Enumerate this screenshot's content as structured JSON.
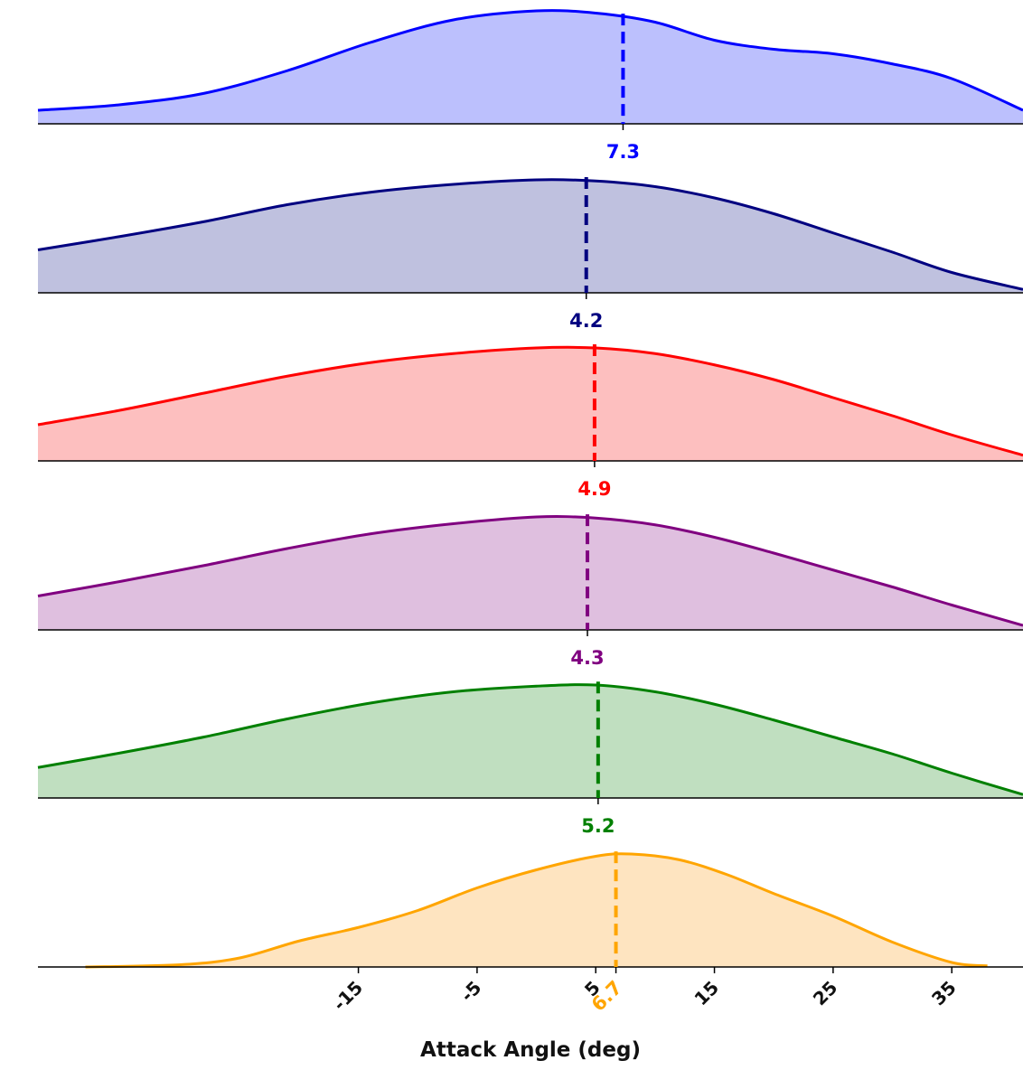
{
  "chart_data": {
    "type": "area",
    "title": "",
    "xlabel": "Attack Angle (deg)",
    "ylabel": "",
    "xlim": [
      -42,
      41
    ],
    "xticks": [
      -15,
      -5,
      5,
      15,
      25,
      35
    ],
    "xtick_labels": [
      "-15",
      "-5",
      "5",
      "15",
      "25",
      "35"
    ],
    "grid": false,
    "legend": "none",
    "series": [
      {
        "color": "#0000ff",
        "fill": "#bcc0fd",
        "mean": 7.3,
        "mean_label": "7.3",
        "density": [
          [
            -42,
            0.12
          ],
          [
            -35,
            0.17
          ],
          [
            -28,
            0.27
          ],
          [
            -21,
            0.47
          ],
          [
            -14,
            0.72
          ],
          [
            -7,
            0.92
          ],
          [
            0,
            1.0
          ],
          [
            5,
            0.98
          ],
          [
            10,
            0.9
          ],
          [
            15,
            0.74
          ],
          [
            20,
            0.66
          ],
          [
            25,
            0.62
          ],
          [
            30,
            0.53
          ],
          [
            35,
            0.4
          ],
          [
            41,
            0.12
          ]
        ]
      },
      {
        "color": "#000080",
        "fill": "#bfc1df",
        "mean": 4.2,
        "mean_label": "4.2",
        "density": [
          [
            -42,
            0.38
          ],
          [
            -35,
            0.5
          ],
          [
            -28,
            0.63
          ],
          [
            -21,
            0.78
          ],
          [
            -14,
            0.89
          ],
          [
            -7,
            0.96
          ],
          [
            0,
            1.0
          ],
          [
            5,
            0.99
          ],
          [
            10,
            0.94
          ],
          [
            15,
            0.84
          ],
          [
            20,
            0.7
          ],
          [
            25,
            0.53
          ],
          [
            30,
            0.36
          ],
          [
            35,
            0.18
          ],
          [
            41,
            0.03
          ]
        ]
      },
      {
        "color": "#ff0000",
        "fill": "#fdbfbf",
        "mean": 4.9,
        "mean_label": "4.9",
        "density": [
          [
            -42,
            0.32
          ],
          [
            -35,
            0.45
          ],
          [
            -28,
            0.6
          ],
          [
            -21,
            0.75
          ],
          [
            -14,
            0.87
          ],
          [
            -7,
            0.95
          ],
          [
            0,
            1.0
          ],
          [
            5,
            1.0
          ],
          [
            10,
            0.95
          ],
          [
            15,
            0.85
          ],
          [
            20,
            0.72
          ],
          [
            25,
            0.56
          ],
          [
            30,
            0.4
          ],
          [
            35,
            0.23
          ],
          [
            41,
            0.05
          ]
        ]
      },
      {
        "color": "#800080",
        "fill": "#dfbfdf",
        "mean": 4.3,
        "mean_label": "4.3",
        "density": [
          [
            -42,
            0.3
          ],
          [
            -35,
            0.43
          ],
          [
            -28,
            0.57
          ],
          [
            -21,
            0.72
          ],
          [
            -14,
            0.85
          ],
          [
            -7,
            0.94
          ],
          [
            0,
            1.0
          ],
          [
            5,
            0.99
          ],
          [
            10,
            0.93
          ],
          [
            15,
            0.82
          ],
          [
            20,
            0.68
          ],
          [
            25,
            0.53
          ],
          [
            30,
            0.38
          ],
          [
            35,
            0.22
          ],
          [
            41,
            0.04
          ]
        ]
      },
      {
        "color": "#008000",
        "fill": "#c0dfc0",
        "mean": 5.2,
        "mean_label": "5.2",
        "density": [
          [
            -42,
            0.27
          ],
          [
            -35,
            0.4
          ],
          [
            -28,
            0.54
          ],
          [
            -21,
            0.7
          ],
          [
            -14,
            0.84
          ],
          [
            -7,
            0.94
          ],
          [
            0,
            0.99
          ],
          [
            5,
            1.0
          ],
          [
            10,
            0.94
          ],
          [
            15,
            0.83
          ],
          [
            20,
            0.69
          ],
          [
            25,
            0.54
          ],
          [
            30,
            0.39
          ],
          [
            35,
            0.22
          ],
          [
            41,
            0.03
          ]
        ]
      },
      {
        "color": "#ffa500",
        "fill": "#fee4c0",
        "mean": 6.7,
        "mean_label": "6.7",
        "density": [
          [
            -38,
            0.0
          ],
          [
            -30,
            0.02
          ],
          [
            -25,
            0.08
          ],
          [
            -20,
            0.23
          ],
          [
            -15,
            0.35
          ],
          [
            -10,
            0.5
          ],
          [
            -5,
            0.7
          ],
          [
            0,
            0.86
          ],
          [
            5,
            0.98
          ],
          [
            8,
            1.0
          ],
          [
            12,
            0.95
          ],
          [
            16,
            0.82
          ],
          [
            20,
            0.65
          ],
          [
            25,
            0.45
          ],
          [
            30,
            0.22
          ],
          [
            35,
            0.04
          ],
          [
            38,
            0.01
          ]
        ]
      }
    ]
  }
}
